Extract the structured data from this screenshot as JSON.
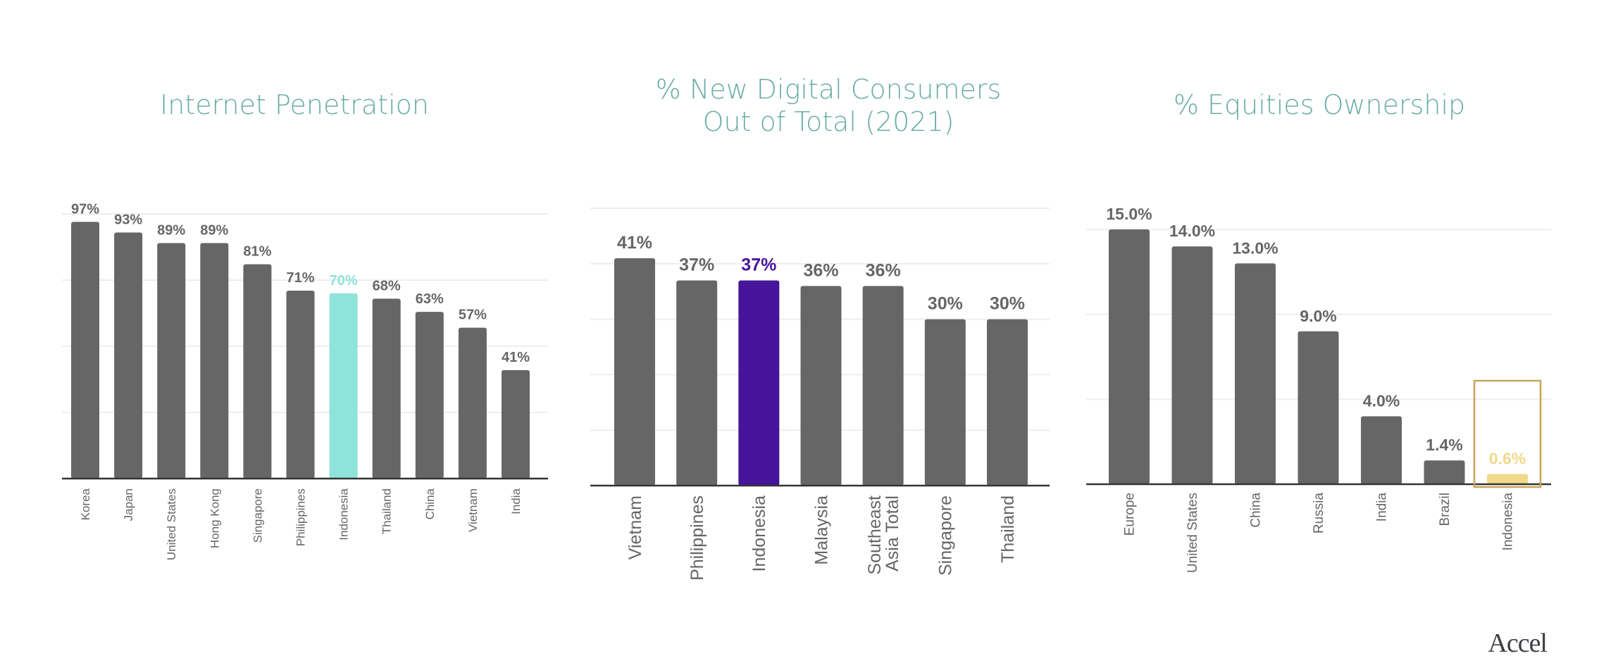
{
  "colors": {
    "title": "#6aaea6",
    "bar": "#666666",
    "label": "#666666",
    "grid": "#eeeeee",
    "axis": "#333333",
    "highlight_internet": "#8ee3da",
    "highlight_digital": "#46149b",
    "highlight_equities": "#f1d98a",
    "highlight_box": "#c9a35a"
  },
  "logo": "Accel",
  "chart_data": [
    {
      "type": "bar",
      "title": "Internet Penetration",
      "title_lines": [
        "Internet Penetration"
      ],
      "xlabel": "",
      "ylabel": "",
      "ylim": [
        0,
        100
      ],
      "gridlines": [
        25,
        50,
        75,
        100
      ],
      "grid": true,
      "categories": [
        "Korea",
        "Japan",
        "United States",
        "Hong Kong",
        "Singapore",
        "Philippines",
        "Indonesia",
        "Thailand",
        "China",
        "Vietnam",
        "India"
      ],
      "values": [
        97,
        93,
        89,
        89,
        81,
        71,
        70,
        68,
        63,
        57,
        41
      ],
      "labels": [
        "97%",
        "93%",
        "89%",
        "89%",
        "81%",
        "71%",
        "70%",
        "68%",
        "63%",
        "57%",
        "41%"
      ],
      "highlight_index": 6,
      "highlight_color_key": "highlight_internet",
      "label_size": "small"
    },
    {
      "type": "bar",
      "title": "% New Digital Consumers Out of Total (2021)",
      "title_lines": [
        "% New Digital Consumers",
        "Out of Total (2021)"
      ],
      "xlabel": "",
      "ylabel": "",
      "ylim": [
        0,
        50
      ],
      "gridlines": [
        10,
        20,
        30,
        40,
        50
      ],
      "grid": true,
      "categories": [
        "Vietnam",
        "Philippines",
        "Indonesia",
        "Malaysia",
        "Southeast Asia Total",
        "Singapore",
        "Thailand"
      ],
      "category_lines": [
        [
          "Vietnam"
        ],
        [
          "Philippines"
        ],
        [
          "Indonesia"
        ],
        [
          "Malaysia"
        ],
        [
          "Southeast",
          "Asia Total"
        ],
        [
          "Singapore"
        ],
        [
          "Thailand"
        ]
      ],
      "values": [
        41,
        37,
        37,
        36,
        36,
        30,
        30
      ],
      "labels": [
        "41%",
        "37%",
        "37%",
        "36%",
        "36%",
        "30%",
        "30%"
      ],
      "highlight_index": 2,
      "highlight_color_key": "highlight_digital",
      "label_size": "large"
    },
    {
      "type": "bar",
      "title": "% Equities Ownership",
      "title_lines": [
        "% Equities Ownership"
      ],
      "xlabel": "",
      "ylabel": "",
      "ylim": [
        0,
        15
      ],
      "gridlines": [
        5,
        10,
        15
      ],
      "grid": true,
      "categories": [
        "Europe",
        "United States",
        "China",
        "Russia",
        "India",
        "Brazil",
        "Indonesia"
      ],
      "values": [
        15.0,
        14.0,
        13.0,
        9.0,
        4.0,
        1.4,
        0.6
      ],
      "labels": [
        "15.0%",
        "14.0%",
        "13.0%",
        "9.0%",
        "4.0%",
        "1.4%",
        "0.6%"
      ],
      "highlight_index": 6,
      "highlight_color_key": "highlight_equities",
      "highlight_boxed": true,
      "label_size": "medium"
    }
  ]
}
